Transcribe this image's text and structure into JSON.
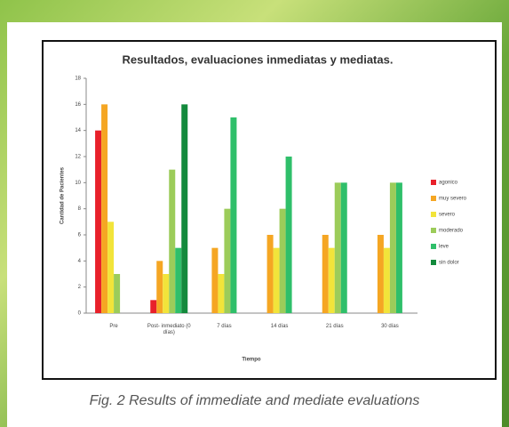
{
  "chart_data": {
    "type": "bar",
    "title": "Resultados, evaluaciones inmediatas y mediatas.",
    "x_label": "Tiempo",
    "y_label": "Cantidad de Pacientes",
    "categories": [
      "Pre",
      "Post- inmediato (0 días)",
      "7 días",
      "14 días",
      "21 días",
      "30 días"
    ],
    "series": [
      {
        "name": "agonico",
        "color": "#e8202a",
        "values": [
          14,
          1,
          0,
          0,
          0,
          0
        ]
      },
      {
        "name": "muy severo",
        "color": "#f5a623",
        "values": [
          16,
          4,
          5,
          6,
          6,
          6
        ]
      },
      {
        "name": "severo",
        "color": "#f2e43a",
        "values": [
          7,
          3,
          3,
          5,
          5,
          5
        ]
      },
      {
        "name": "moderado",
        "color": "#9ccc5a",
        "values": [
          3,
          11,
          8,
          8,
          10,
          10
        ]
      },
      {
        "name": "leve",
        "color": "#2fbf6a",
        "values": [
          0,
          5,
          15,
          12,
          10,
          10
        ]
      },
      {
        "name": "sin dolor",
        "color": "#138a3c",
        "values": [
          0,
          16,
          0,
          0,
          0,
          0
        ]
      }
    ],
    "ylim": [
      0,
      18
    ],
    "yticks": [
      0,
      2,
      4,
      6,
      8,
      10,
      12,
      14,
      16,
      18
    ],
    "grid": false,
    "legend": "right"
  },
  "caption": "Fig. 2 Results of immediate and mediate evaluations"
}
